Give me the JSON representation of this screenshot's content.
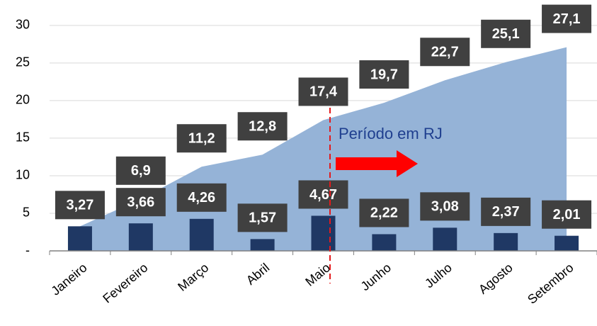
{
  "chart_data": {
    "type": "bar-area",
    "categories": [
      "Janeiro",
      "Fevereiro",
      "Março",
      "Abril",
      "Maio",
      "Junho",
      "Julho",
      "Agosto",
      "Setembro"
    ],
    "series": [
      {
        "type": "area",
        "color": "#95b3d7",
        "values": [
          3.27,
          6.9,
          11.2,
          12.8,
          17.4,
          19.7,
          22.7,
          25.1,
          27.1
        ],
        "value_labels": [
          null,
          "6,9",
          "11,2",
          "12,8",
          "17,4",
          "19,7",
          "22,7",
          "25,1",
          "27,1"
        ]
      },
      {
        "type": "bar",
        "color": "#1f3864",
        "values": [
          3.27,
          3.66,
          4.26,
          1.57,
          4.67,
          2.22,
          3.08,
          2.37,
          2.01
        ],
        "value_labels": [
          "3,27",
          "3,66",
          "4,26",
          "1,57",
          "4,67",
          "2,22",
          "3,08",
          "2,37",
          "2,01"
        ]
      }
    ],
    "ylim": [
      0,
      33
    ],
    "yticks": [
      {
        "value": 0,
        "label": "-"
      },
      5,
      10,
      15,
      20,
      25,
      30
    ],
    "grid": true,
    "annotation": "Período em RJ"
  }
}
